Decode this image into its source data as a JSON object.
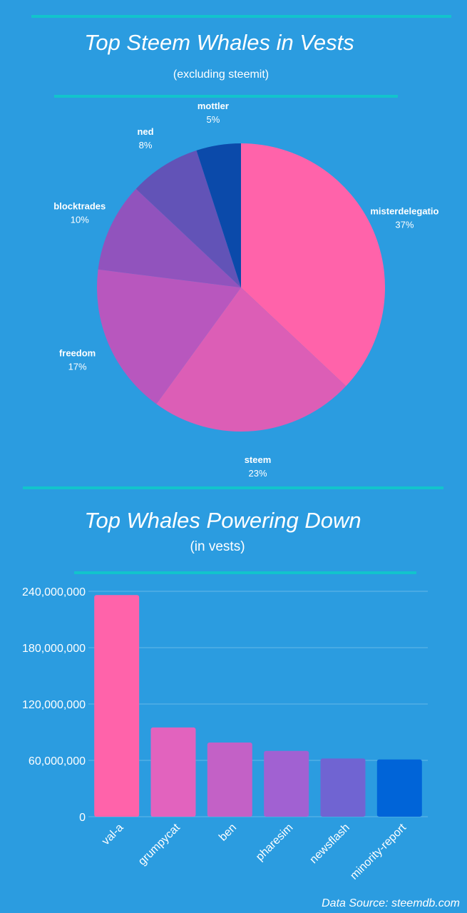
{
  "chart_data": [
    {
      "type": "pie",
      "title": "Top Steem Whales in Vests",
      "subtitle": "(excluding steemit)",
      "slices": [
        {
          "label": "misterdelegatio",
          "value": 37,
          "pct_label": "37%",
          "color": "#ff63aa"
        },
        {
          "label": "steem",
          "value": 23,
          "pct_label": "23%",
          "color": "#dc5eb6"
        },
        {
          "label": "freedom",
          "value": 17,
          "pct_label": "17%",
          "color": "#b857be"
        },
        {
          "label": "blocktrades",
          "value": 10,
          "pct_label": "10%",
          "color": "#9153bd"
        },
        {
          "label": "ned",
          "value": 8,
          "pct_label": "8%",
          "color": "#6253b7"
        },
        {
          "label": "mottler",
          "value": 5,
          "pct_label": "5%",
          "color": "#0b4aaa"
        }
      ]
    },
    {
      "type": "bar",
      "title": "Top Whales Powering Down",
      "subtitle": "(in vests)",
      "categories": [
        "val-a",
        "grumpycat",
        "ben",
        "pharesim",
        "newsflash",
        "minority-report"
      ],
      "values": [
        236000000,
        95000000,
        79000000,
        70000000,
        62000000,
        61000000
      ],
      "colors": [
        "#ff63aa",
        "#e263be",
        "#c361c6",
        "#a161d2",
        "#7064d2",
        "#0064d8"
      ],
      "yticks": [
        0,
        60000000,
        120000000,
        180000000,
        240000000
      ],
      "ytick_labels": [
        "0",
        "60,000,000",
        "120,000,000",
        "180,000,000",
        "240,000,000"
      ],
      "ylim": [
        0,
        240000000
      ],
      "grid": true
    }
  ],
  "footer": "Data Source: steemdb.com"
}
